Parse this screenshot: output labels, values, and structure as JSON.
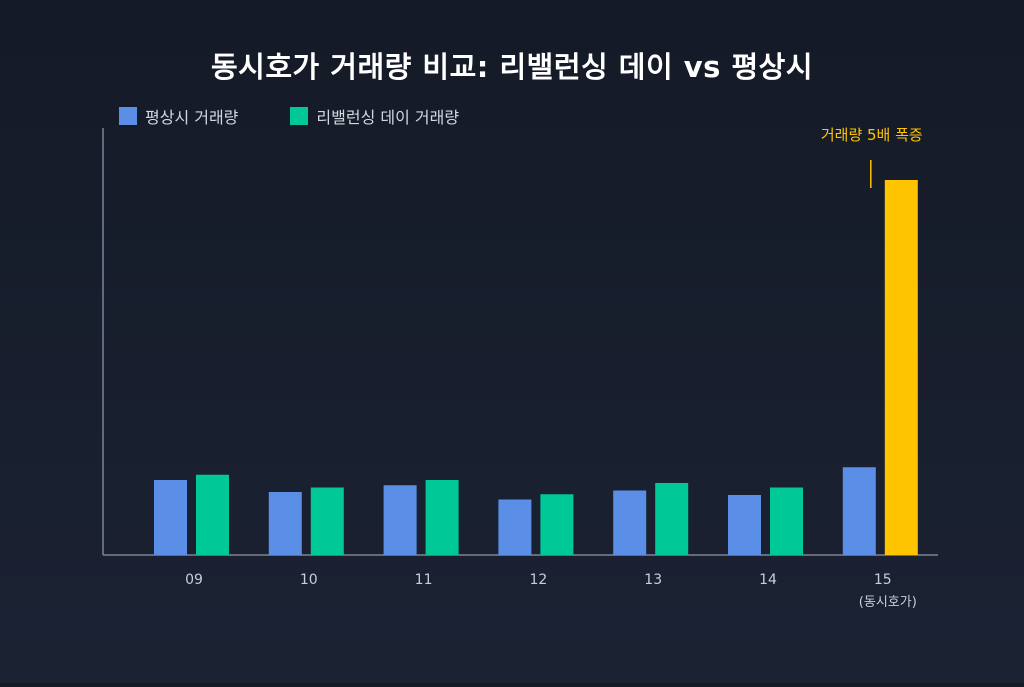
{
  "chart_data": {
    "type": "bar",
    "title": "동시호가 거래량 비교: 리밸런싱 데이 vs 평상시",
    "categories": [
      "09",
      "10",
      "11",
      "12",
      "13",
      "14",
      "15"
    ],
    "category_sublabels": [
      "",
      "",
      "",
      "",
      "",
      "",
      "(동시호가)"
    ],
    "series": [
      {
        "name": "평상시 거래량",
        "color": "#5b8ee6",
        "values": [
          1.0,
          0.84,
          0.93,
          0.74,
          0.86,
          0.8,
          1.17
        ]
      },
      {
        "name": "리밸런싱 데이 거래량",
        "color": "#00c896",
        "values": [
          1.07,
          0.9,
          1.0,
          0.81,
          0.96,
          0.9,
          5.0
        ]
      }
    ],
    "highlight": {
      "series": 1,
      "category": 6,
      "color": "#ffc400",
      "annotation": "거래량 5배 폭증"
    },
    "ylim": [
      0,
      5.2
    ],
    "grid": false,
    "legend_position": "top-left"
  },
  "colors": {
    "axis": "#7c8496",
    "tick_text": "#c9ced8",
    "annotation": "#ffc400"
  }
}
